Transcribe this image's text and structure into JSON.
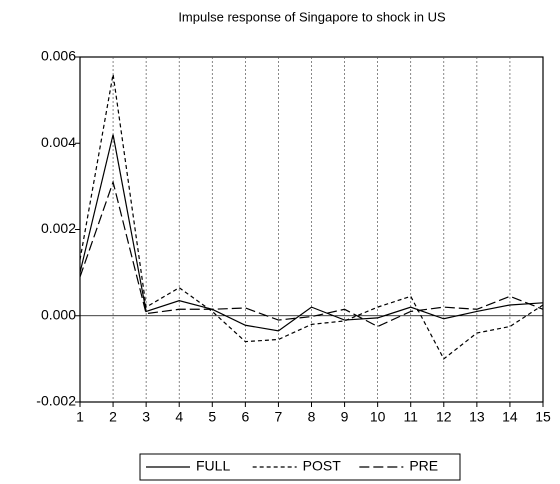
{
  "chart_data": {
    "type": "line",
    "title": "Impulse response of Singapore to shock in US",
    "categories": [
      "1",
      "2",
      "3",
      "4",
      "5",
      "6",
      "7",
      "8",
      "9",
      "10",
      "11",
      "12",
      "13",
      "14",
      "15"
    ],
    "series": [
      {
        "name": "FULL",
        "color": "#000000",
        "dash": "none",
        "values": [
          0.001,
          0.0042,
          0.0001,
          0.00035,
          0.00015,
          -0.00022,
          -0.00035,
          0.0002,
          -0.0001,
          -5e-05,
          0.0002,
          -7e-05,
          0.0001,
          0.00025,
          0.0003
        ]
      },
      {
        "name": "POST",
        "color": "#000000",
        "dash": "4,3",
        "values": [
          0.0013,
          0.0056,
          0.0002,
          0.00065,
          0.0001,
          -0.0006,
          -0.00055,
          -0.0002,
          -0.00012,
          0.0002,
          0.00045,
          -0.001,
          -0.0004,
          -0.00025,
          0.00025
        ]
      },
      {
        "name": "PRE",
        "color": "#000000",
        "dash": "10,4",
        "values": [
          0.0009,
          0.0031,
          5e-05,
          0.00015,
          0.00015,
          0.00018,
          -0.0001,
          -2e-05,
          0.00015,
          -0.00025,
          0.0001,
          0.0002,
          0.00015,
          0.00045,
          0.00015
        ]
      }
    ],
    "ylim": [
      -0.002,
      0.006
    ],
    "yticks": [
      -0.002,
      {
        "value": 0,
        "label": "0.000"
      },
      0.002,
      0.004,
      0.006
    ],
    "grid": true
  }
}
